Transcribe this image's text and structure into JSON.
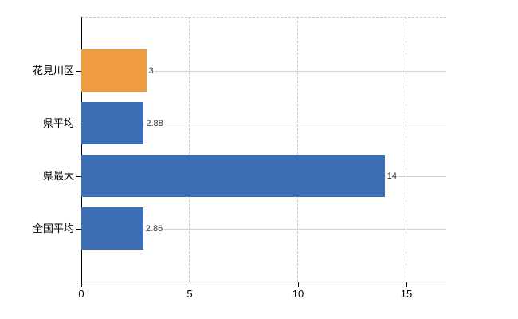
{
  "chart_data": {
    "type": "bar",
    "orientation": "horizontal",
    "title": "",
    "categories": [
      "花見川区",
      "県平均",
      "県最大",
      "全国平均"
    ],
    "values": [
      3,
      2.88,
      14,
      2.86
    ],
    "value_labels": [
      "3",
      "2.88",
      "14",
      "2.86"
    ],
    "bar_colors": [
      "#ef9b3f",
      "#3c6eb4",
      "#3c6eb4",
      "#3c6eb4"
    ],
    "xtick_labels": [
      "0",
      "5",
      "10",
      "15"
    ],
    "xtick_values": [
      0,
      5,
      10,
      15
    ],
    "xlim": [
      0,
      16.8
    ],
    "legend_position": "none",
    "grid": {
      "vertical_gridlines": "dashed, at ticks 5 10 15",
      "horizontal_gridlines": "solid, at each category row center",
      "top_border": "dashed"
    }
  },
  "colors": {
    "background": "#ffffff",
    "axis": "#000000",
    "dashed_grid": "#c9c9c9",
    "row_grid": "#cdd2cd",
    "value_text": "#333333",
    "label_text": "#000000",
    "bar_orange": "#ef9b3f",
    "bar_blue": "#3c6eb4"
  }
}
